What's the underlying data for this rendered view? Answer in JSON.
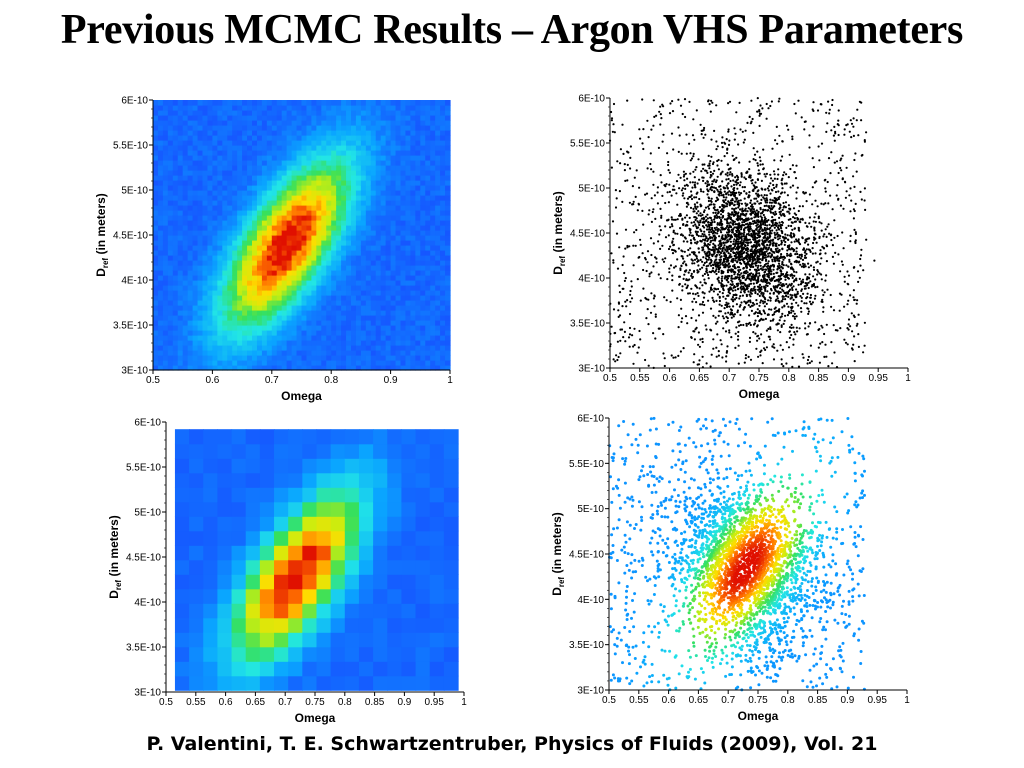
{
  "slide": {
    "title": "Previous MCMC Results – Argon VHS Parameters",
    "citation": "P. Valentini, T. E. Schwartzentruber, Physics of Fluids (2009), Vol. 21"
  },
  "chart_data": [
    {
      "id": "top-left",
      "type": "heatmap",
      "subtype": "fine-contour",
      "xlabel": "Omega",
      "ylabel_main": "D",
      "ylabel_sub": "ref",
      "ylabel_rest": " (in meters)",
      "xlim": [
        0.5,
        1.0
      ],
      "ylim": [
        3e-10,
        6e-10
      ],
      "xticks": [
        "0.5",
        "0.6",
        "0.7",
        "0.8",
        "0.9",
        "1"
      ],
      "xtick_values": [
        0.5,
        0.6,
        0.7,
        0.8,
        0.9,
        1.0
      ],
      "yticks": [
        "3E-10",
        "3.5E-10",
        "4E-10",
        "4.5E-10",
        "5E-10",
        "5.5E-10",
        "6E-10"
      ],
      "ytick_values": [
        3e-10,
        3.5e-10,
        4e-10,
        4.5e-10,
        5e-10,
        5.5e-10,
        6e-10
      ],
      "peak": {
        "omega": 0.725,
        "d_ref": 4.4e-10
      },
      "colormap": [
        "#1a3cff",
        "#0aa5ff",
        "#22e6e6",
        "#36e05c",
        "#c8ee10",
        "#ffdc00",
        "#ff7000",
        "#e01000"
      ]
    },
    {
      "id": "top-right",
      "type": "scatter",
      "subtype": "black",
      "xlabel": "Omega",
      "ylabel_main": "D",
      "ylabel_sub": "ref",
      "ylabel_rest": " (in meters)",
      "xlim": [
        0.5,
        1.0
      ],
      "ylim": [
        3e-10,
        6e-10
      ],
      "xticks": [
        "0.5",
        "0.55",
        "0.6",
        "0.65",
        "0.7",
        "0.75",
        "0.8",
        "0.85",
        "0.9",
        "0.95",
        "1"
      ],
      "xtick_values": [
        0.5,
        0.55,
        0.6,
        0.65,
        0.7,
        0.75,
        0.8,
        0.85,
        0.9,
        0.95,
        1.0
      ],
      "yticks": [
        "3E-10",
        "3.5E-10",
        "4E-10",
        "4.5E-10",
        "5E-10",
        "5.5E-10",
        "6E-10"
      ],
      "ytick_values": [
        3e-10,
        3.5e-10,
        4e-10,
        4.5e-10,
        5e-10,
        5.5e-10,
        6e-10
      ],
      "peak": {
        "omega": 0.73,
        "d_ref": 4.35e-10
      },
      "point_color": "#000000"
    },
    {
      "id": "bottom-left",
      "type": "heatmap",
      "subtype": "coarse-contour",
      "xlabel": "Omega",
      "ylabel_main": "D",
      "ylabel_sub": "ref",
      "ylabel_rest": " (in meters)",
      "xlim": [
        0.5,
        1.0
      ],
      "ylim": [
        3e-10,
        6e-10
      ],
      "xticks": [
        "0.5",
        "0.55",
        "0.6",
        "0.65",
        "0.7",
        "0.75",
        "0.8",
        "0.85",
        "0.9",
        "0.95",
        "1"
      ],
      "xtick_values": [
        0.5,
        0.55,
        0.6,
        0.65,
        0.7,
        0.75,
        0.8,
        0.85,
        0.9,
        0.95,
        1.0
      ],
      "yticks": [
        "3E-10",
        "3.5E-10",
        "4E-10",
        "4.5E-10",
        "5E-10",
        "5.5E-10",
        "6E-10"
      ],
      "ytick_values": [
        3e-10,
        3.5e-10,
        4e-10,
        4.5e-10,
        5e-10,
        5.5e-10,
        6e-10
      ],
      "data_xlim": [
        0.515,
        0.99
      ],
      "data_ylim": [
        3.02e-10,
        5.92e-10
      ],
      "peak": {
        "omega": 0.72,
        "d_ref": 4.3e-10
      },
      "colormap": [
        "#1a3cff",
        "#0aa5ff",
        "#22e6e6",
        "#36e05c",
        "#c8ee10",
        "#ffdc00",
        "#ff7000",
        "#e01000"
      ]
    },
    {
      "id": "bottom-right",
      "type": "scatter",
      "subtype": "colored-by-density",
      "xlabel": "Omega",
      "ylabel_main": "D",
      "ylabel_sub": "ref",
      "ylabel_rest": " (in meters)",
      "xlim": [
        0.5,
        1.0
      ],
      "ylim": [
        3e-10,
        6e-10
      ],
      "xticks": [
        "0.5",
        "0.55",
        "0.6",
        "0.65",
        "0.7",
        "0.75",
        "0.8",
        "0.85",
        "0.9",
        "0.95",
        "1"
      ],
      "xtick_values": [
        0.5,
        0.55,
        0.6,
        0.65,
        0.7,
        0.75,
        0.8,
        0.85,
        0.9,
        0.95,
        1.0
      ],
      "yticks": [
        "3E-10",
        "3.5E-10",
        "4E-10",
        "4.5E-10",
        "5E-10",
        "5.5E-10",
        "6E-10"
      ],
      "ytick_values": [
        3e-10,
        3.5e-10,
        4e-10,
        4.5e-10,
        5e-10,
        5.5e-10,
        6e-10
      ],
      "peak": {
        "omega": 0.73,
        "d_ref": 4.35e-10
      },
      "colormap": [
        "#1a3cff",
        "#0aa5ff",
        "#22e6e6",
        "#36e05c",
        "#c8ee10",
        "#ffdc00",
        "#ff7000",
        "#e01000"
      ]
    }
  ]
}
